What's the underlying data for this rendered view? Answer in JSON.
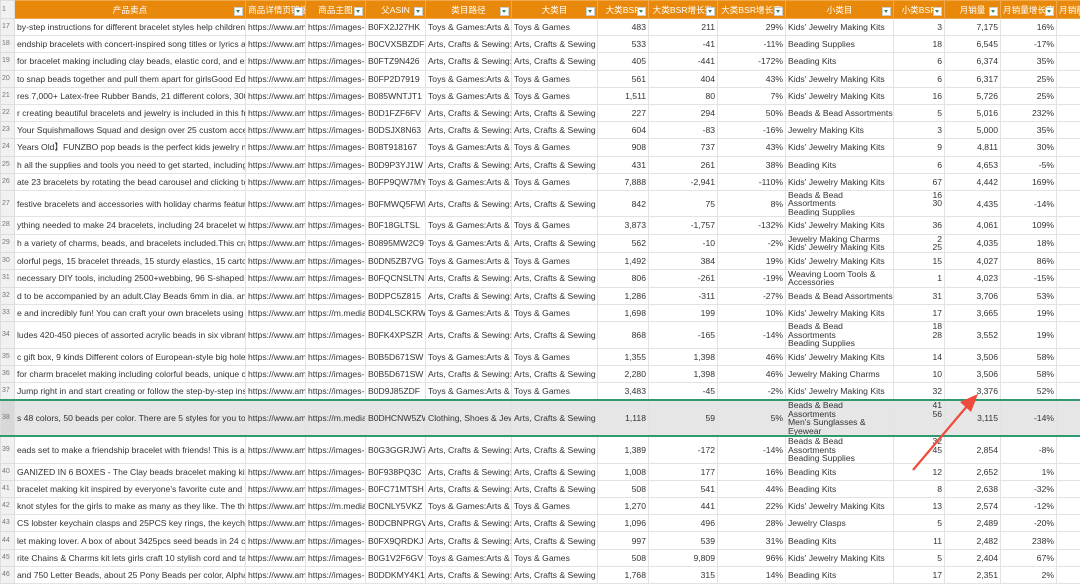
{
  "header_row_number": "1",
  "columns": [
    "产品卖点",
    "商品详情页链接",
    "商品主图",
    "父ASIN",
    "类目路径",
    "大类目",
    "大类BSR",
    "大类BSR增长数",
    "大类BSR增长率",
    "小类目",
    "小类BSR",
    "月销量",
    "月销量增长率",
    "月销额增长率"
  ],
  "colors": {
    "header": "#E8890C",
    "selection": "#2e9b6e",
    "arrow": "#f04a3c"
  },
  "rows": [
    [
      "17",
      "by-step instructions for different bracelet styles help children get h",
      "https://www.ama",
      "https://images-r",
      "B0FX2J27HK",
      "Toys & Games:Arts & Cr",
      "Toys & Games",
      "483",
      "211",
      "29%",
      "Kids' Jewelry Making Kits",
      "3",
      "7,175",
      "16%"
    ],
    [
      "18",
      "endship bracelets with concert-inspired song titles or lyrics allows t",
      "https://www.ama",
      "https://images-r",
      "B0CVXSBZDF",
      "Arts, Crafts & Sewing:Be",
      "Arts, Crafts & Sewing",
      "533",
      "-41",
      "-11%",
      "Beading Supplies",
      "18",
      "6,545",
      "-17%"
    ],
    [
      "19",
      "for bracelet making including clay beads, elastic cord, and essentia",
      "https://www.ama",
      "https://images-r",
      "B0FTZ9N426",
      "Arts, Crafts & Sewing:Be",
      "Arts, Crafts & Sewing",
      "405",
      "-441",
      "-172%",
      "Beading Kits",
      "6",
      "6,374",
      "35%"
    ],
    [
      "20",
      "to snap beads together and pull them apart for girlsGood Educati",
      "https://www.ama",
      "https://images-r",
      "B0FP2D7919",
      "Toys & Games:Arts & Cr",
      "Toys & Games",
      "561",
      "404",
      "43%",
      "Kids' Jewelry Making Kits",
      "6",
      "6,317",
      "25%"
    ],
    [
      "21",
      "res 7,000+ Latex-free Rubber Bands, 21 different colors, 300 colorf",
      "https://www.ama",
      "https://images-r",
      "B085WNTJT1",
      "Toys & Games:Arts & Cr",
      "Toys & Games",
      "1,511",
      "80",
      "7%",
      "Kids' Jewelry Making Kits",
      "16",
      "5,726",
      "25%"
    ],
    [
      "22",
      "r creating beautiful bracelets and jewelry is included in this friendsh",
      "https://www.ama",
      "https://images-r",
      "B0D1FZF6FV",
      "Arts, Crafts & Sewing:Be",
      "Arts, Crafts & Sewing",
      "227",
      "294",
      "50%",
      "Beads & Bead Assortments",
      "5",
      "5,016",
      "232%"
    ],
    [
      "23",
      "Your Squishmallows Squad and design over 25 custom accessories",
      "https://www.ama",
      "https://images-r",
      "B0DSJX8N63",
      "Arts, Crafts & Sewing:Be",
      "Arts, Crafts & Sewing",
      "604",
      "-83",
      "-16%",
      "Jewelry Making Kits",
      "3",
      "5,000",
      "35%"
    ],
    [
      "24",
      "Years Old】FUNZBO pop beads is the perfect kids jewelry making",
      "https://www.ama",
      "https://images-r",
      "B08T918167",
      "Toys & Games:Arts & Cr",
      "Toys & Games",
      "908",
      "737",
      "43%",
      "Kids' Jewelry Making Kits",
      "9",
      "4,811",
      "30%"
    ],
    [
      "25",
      "h all the supplies and tools you need to get started, including 48-c",
      "https://www.ama",
      "https://images-r",
      "B0D9P3YJ1W",
      "Arts, Crafts & Sewing:Be",
      "Arts, Crafts & Sewing",
      "431",
      "261",
      "38%",
      "Beading Kits",
      "6",
      "4,653",
      "-5%"
    ],
    [
      "26",
      "ate 23 bracelets by rotating the bead carousel and clicking to thre",
      "https://www.ama",
      "https://images-r",
      "B0FP9QW7MY",
      "Toys & Games:Arts & Cr",
      "Toys & Games",
      "7,888",
      "-2,941",
      "-110%",
      "Kids' Jewelry Making Kits",
      "67",
      "4,442",
      "169%"
    ],
    [
      "27",
      "festive bracelets and accessories with holiday charms featuring San",
      "https://www.ama",
      "https://images-r",
      "B0FMWQ5FWP",
      "Arts, Crafts & Sewing:Be",
      "Arts, Crafts & Sewing",
      "842",
      "75",
      "8%",
      "Beads & Bead Assortments\nBeading Supplies",
      "16\n30",
      "4,435",
      "-14%"
    ],
    [
      "28",
      "ything needed to make 24 bracelets, including 24 bracelet wands, T",
      "https://www.ama",
      "https://images-r",
      "B0F18GLTSL",
      "Toys & Games:Arts & Cr",
      "Toys & Games",
      "3,873",
      "-1,757",
      "-132%",
      "Kids' Jewelry Making Kits",
      "36",
      "4,061",
      "109%"
    ],
    [
      "29",
      "h a variety of charms, beads, and bracelets included.This craft kit ha",
      "https://www.ama",
      "https://images-r",
      "B0895MW2C9",
      "Toys & Games:Arts & Cr",
      "Arts, Crafts & Sewing",
      "562",
      "-10",
      "-2%",
      "Jewelry Making Charms\nKids' Jewelry Making Kits",
      "2\n25",
      "4,035",
      "18%"
    ],
    [
      "30",
      "olorful pegs, 15 bracelet threads, 15 sturdy elastics, 15 cartoon bu",
      "https://www.ama",
      "https://images-r",
      "B0DN5ZB7VG",
      "Toys & Games:Arts & Cr",
      "Toys & Games",
      "1,492",
      "384",
      "19%",
      "Kids' Jewelry Making Kits",
      "15",
      "4,027",
      "86%"
    ],
    [
      "31",
      "necessary DIY tools, including 2500+webbing, 96 S-shaped clips, 4",
      "https://www.ama",
      "https://images-r",
      "B0FQCNSLTN",
      "Arts, Crafts & Sewing:Cra",
      "Arts, Crafts & Sewing",
      "806",
      "-261",
      "-19%",
      "Weaving Loom Tools &\nAccessories",
      "1",
      "4,023",
      "-15%"
    ],
    [
      "32",
      "d to be accompanied by an adult.Clay Beads 6mm in dia. and 1mr",
      "https://www.ama",
      "https://images-r",
      "B0DPC5Z815",
      "Arts, Crafts & Sewing:Be",
      "Arts, Crafts & Sewing",
      "1,286",
      "-311",
      "-27%",
      "Beads & Bead Assortments",
      "31",
      "3,706",
      "53%"
    ],
    [
      "33",
      "e and incredibly fun! You can craft your own bracelets using the frie",
      "https://www.ama",
      "https://m.media-",
      "B0D4LSCKRW",
      "Toys & Games:Arts & Cr",
      "Toys & Games",
      "1,698",
      "199",
      "10%",
      "Kids' Jewelry Making Kits",
      "17",
      "3,665",
      "19%"
    ],
    [
      "34",
      "ludes 420-450 pieces of assorted acrylic beads in six vibrant colors",
      "https://www.ama",
      "https://images-r",
      "B0FK4XPSZR",
      "Arts, Crafts & Sewing:Be",
      "Arts, Crafts & Sewing",
      "868",
      "-165",
      "-14%",
      "Beads & Bead Assortments\nBeading Supplies",
      "18\n28",
      "3,552",
      "19%"
    ],
    [
      "35",
      "c gift box, 9 kinds Different colors of European-style big hole bead",
      "https://www.ama",
      "https://images-r",
      "B0B5D671SW",
      "Toys & Games:Arts & Cr",
      "Toys & Games",
      "1,355",
      "1,398",
      "46%",
      "Kids' Jewelry Making Kits",
      "14",
      "3,506",
      "58%"
    ],
    [
      "36",
      "for charm bracelet making including colorful beads, unique charm",
      "https://www.ama",
      "https://images-r",
      "B0B5D671SW",
      "Arts, Crafts & Sewing:Be",
      "Arts, Crafts & Sewing",
      "2,280",
      "1,398",
      "46%",
      "Jewelry Making Charms",
      "10",
      "3,506",
      "58%"
    ],
    [
      "37",
      "Jump right in and start creating or follow the step-by-step instruc",
      "https://www.ama",
      "https://images-r",
      "B0D9J85ZDF",
      "Toys & Games:Arts & Cr",
      "Toys & Games",
      "3,483",
      "-45",
      "-2%",
      "Kids' Jewelry Making Kits",
      "32",
      "3,376",
      "52%"
    ],
    [
      "38",
      "s 48 colors, 50 beads per color. There are 5 styles for you to choos",
      "https://www.ama",
      "https://m.media-",
      "B0DHCNW5ZW",
      "Clothing, Shoes & Jewel",
      "Arts, Crafts & Sewing",
      "1,118",
      "59",
      "5%",
      "Beads & Bead Assortments\nMen's Sunglasses & Eyewear",
      "41\n56",
      "3,115",
      "-14%"
    ],
    [
      "39",
      "eads set to make a friendship bracelet with friends! This is a key ele",
      "https://www.ama",
      "https://images-r",
      "B0G3GGRJW7",
      "Arts, Crafts & Sewing:Be",
      "Arts, Crafts & Sewing",
      "1,389",
      "-172",
      "-14%",
      "Beads & Bead Assortments\nBeading Supplies",
      "32\n45",
      "2,854",
      "-8%"
    ],
    [
      "40",
      "GANIZED IN 6 BOXES - The Clay beads bracelet making kit contai",
      "https://www.ama",
      "https://images-r",
      "B0F938PQ3C",
      "Arts, Crafts & Sewing:Be",
      "Arts, Crafts & Sewing",
      "1,008",
      "177",
      "16%",
      "Beading Kits",
      "12",
      "2,652",
      "1%"
    ],
    [
      "41",
      "bracelet making kit inspired by everyone's favorite cute and fluffy",
      "https://www.ama",
      "https://images-r",
      "B0FC71MTSH",
      "Arts, Crafts & Sewing:Be",
      "Arts, Crafts & Sewing",
      "508",
      "541",
      "44%",
      "Beading Kits",
      "8",
      "2,638",
      "-32%"
    ],
    [
      "42",
      "knot styles for the girls to make as many as they like. The threads ca",
      "https://www.ama",
      "https://m.media-",
      "B0CNLY5VKZ",
      "Toys & Games:Arts & Cr",
      "Toys & Games",
      "1,270",
      "441",
      "22%",
      "Kids' Jewelry Making Kits",
      "13",
      "2,574",
      "-12%"
    ],
    [
      "43",
      "CS lobster keychain clasps and 25PCS key rings, the keychain is pre",
      "https://www.ama",
      "https://images-r",
      "B0DCBNPRGV",
      "Arts, Crafts & Sewing:Be",
      "Arts, Crafts & Sewing",
      "1,096",
      "496",
      "28%",
      "Jewelry Clasps",
      "5",
      "2,489",
      "-20%"
    ],
    [
      "44",
      "let making lover. A box of about 3425pcs seed beads in 24 colors",
      "https://www.ama",
      "https://images-r",
      "B0FX9QRDKJ",
      "Arts, Crafts & Sewing:Be",
      "Arts, Crafts & Sewing",
      "997",
      "539",
      "31%",
      "Beading Kits",
      "11",
      "2,482",
      "238%"
    ],
    [
      "45",
      "rite Chains & Charms kit lets girls craft 10 stylish cord and tassel br",
      "https://www.ama",
      "https://images-r",
      "B0G1V2F6GV",
      "Toys & Games:Arts & Cr",
      "Toys & Games",
      "508",
      "9,809",
      "96%",
      "Kids' Jewelry Making Kits",
      "5",
      "2,404",
      "67%"
    ],
    [
      "46",
      "and 750 Letter Beads, about 25 Pony Beads per color, Alphabet Be",
      "https://www.ama",
      "https://images-r",
      "B0DDKMY4K1",
      "Arts, Crafts & Sewing:Be",
      "Arts, Crafts & Sewing",
      "1,768",
      "315",
      "14%",
      "Beading Kits",
      "17",
      "2,351",
      "2%"
    ]
  ],
  "selected_row": "38"
}
